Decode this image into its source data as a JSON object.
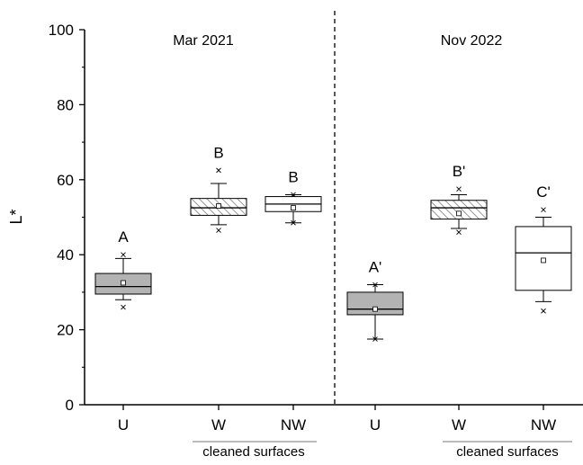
{
  "chart_data": {
    "type": "box",
    "ylabel": "L*",
    "ylim": [
      0,
      100
    ],
    "yticks": [
      0,
      20,
      40,
      60,
      80,
      100
    ],
    "panels": [
      {
        "title": "Mar 2021"
      },
      {
        "title": "Nov 2022"
      }
    ],
    "bracket_label": "cleaned surfaces",
    "colors": {
      "U": "#b3b3b3",
      "W": "hatched",
      "NW": "#ffffff"
    },
    "boxes": [
      {
        "x_label": "U",
        "panel": 0,
        "fill": "U",
        "q1": 29.5,
        "median": 31.5,
        "q3": 35.0,
        "whisker_low": 28.0,
        "whisker_high": 39.0,
        "mean": 32.5,
        "outliers": [
          26.0,
          40.0
        ],
        "letter": "A"
      },
      {
        "x_label": "W",
        "panel": 0,
        "fill": "W",
        "q1": 50.5,
        "median": 52.5,
        "q3": 55.0,
        "whisker_low": 48.0,
        "whisker_high": 59.0,
        "mean": 53.0,
        "outliers": [
          46.5,
          62.5
        ],
        "letter": "B"
      },
      {
        "x_label": "NW",
        "panel": 0,
        "fill": "NW",
        "q1": 51.5,
        "median": 53.5,
        "q3": 55.5,
        "whisker_low": 48.5,
        "whisker_high": 56.0,
        "mean": 52.5,
        "outliers": [
          48.5,
          56.0
        ],
        "letter": "B"
      },
      {
        "x_label": "U",
        "panel": 1,
        "fill": "U",
        "q1": 24.0,
        "median": 25.5,
        "q3": 30.0,
        "whisker_low": 17.5,
        "whisker_high": 32.0,
        "mean": 25.5,
        "outliers": [
          17.5,
          32.0
        ],
        "letter": "A'"
      },
      {
        "x_label": "W",
        "panel": 1,
        "fill": "W",
        "q1": 49.5,
        "median": 52.5,
        "q3": 54.5,
        "whisker_low": 47.0,
        "whisker_high": 56.0,
        "mean": 51.0,
        "outliers": [
          46.0,
          57.5
        ],
        "letter": "B'"
      },
      {
        "x_label": "NW",
        "panel": 1,
        "fill": "NW",
        "q1": 30.5,
        "median": 40.5,
        "q3": 47.5,
        "whisker_low": 27.5,
        "whisker_high": 50.0,
        "mean": 38.5,
        "outliers": [
          25.0,
          52.0
        ],
        "letter": "C'"
      }
    ]
  }
}
